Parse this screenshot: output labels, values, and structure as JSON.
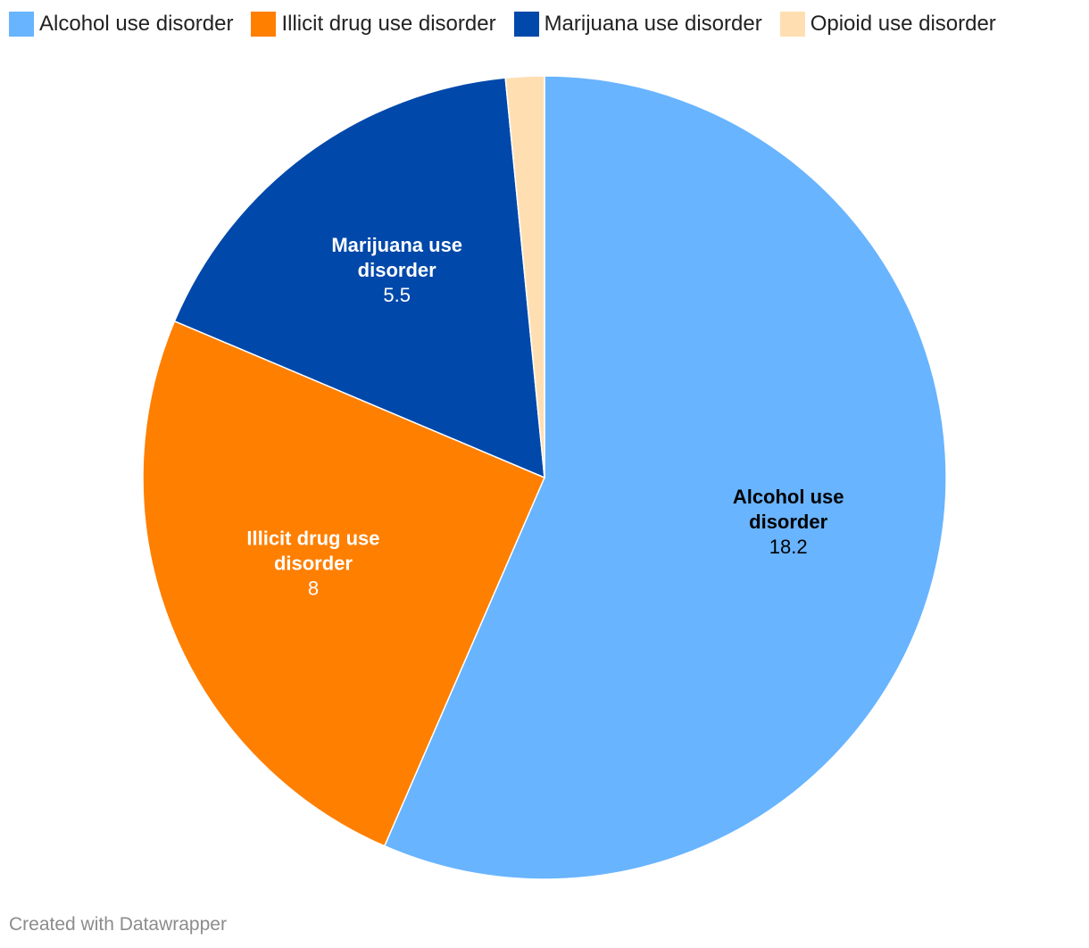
{
  "colors": {
    "alcohol": "#68b4ff",
    "illicit": "#ff7f00",
    "marijuana": "#0048aa",
    "opioid": "#ffdfb2"
  },
  "chart_data": {
    "type": "pie",
    "slices": [
      {
        "label": "Alcohol use disorder",
        "value": 18.2,
        "color_key": "alcohol",
        "label_color": "#000000",
        "show_label": true
      },
      {
        "label": "Illicit drug use disorder",
        "value": 8,
        "color_key": "illicit",
        "label_color": "#ffffff",
        "show_label": true
      },
      {
        "label": "Marijuana use disorder",
        "value": 5.5,
        "color_key": "marijuana",
        "label_color": "#ffffff",
        "show_label": true
      },
      {
        "label": "Opioid use disorder",
        "value": 0.5,
        "color_key": "opioid",
        "label_color": "#000000",
        "show_label": false
      }
    ],
    "legend_position": "top-left",
    "start_angle": "12 o'clock",
    "direction": "clockwise"
  },
  "legend": {
    "items": [
      {
        "label": "Alcohol use disorder",
        "color_key": "alcohol"
      },
      {
        "label": "Illicit drug use disorder",
        "color_key": "illicit"
      },
      {
        "label": "Marijuana use disorder",
        "color_key": "marijuana"
      },
      {
        "label": "Opioid use disorder",
        "color_key": "opioid"
      }
    ]
  },
  "footer": {
    "credit": "Created with Datawrapper"
  }
}
